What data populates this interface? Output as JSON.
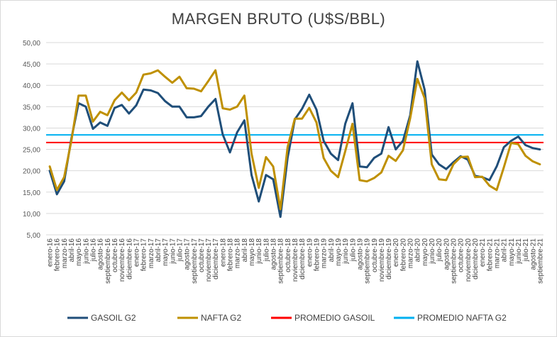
{
  "chart_data": {
    "type": "line",
    "title": "MARGEN BRUTO (U$S/BBL)",
    "xlabel": "",
    "ylabel": "",
    "ylim": [
      5,
      50
    ],
    "yticks": [
      "5,00",
      "10,00",
      "15,00",
      "20,00",
      "25,00",
      "30,00",
      "35,00",
      "40,00",
      "45,00",
      "50,00"
    ],
    "grid": "horizontal",
    "legend_position": "bottom",
    "categories": [
      "enero-16",
      "febrero-16",
      "marzo-16",
      "abril-16",
      "mayo-16",
      "junio-16",
      "julio-16",
      "agosto-16",
      "septiembre-16",
      "octubre-16",
      "noviembre-16",
      "diciembre-16",
      "enero-17",
      "febrero-17",
      "marzo-17",
      "abril-17",
      "mayo-17",
      "junio-17",
      "julio-17",
      "agosto-17",
      "septiembre-17",
      "octubre-17",
      "noviembre-17",
      "diciembre-17",
      "enero-18",
      "febrero-18",
      "marzo-18",
      "abril-18",
      "mayo-18",
      "junio-18",
      "julio-18",
      "agosto-18",
      "septiembre-18",
      "octubre-18",
      "noviembre-18",
      "diciembre-18",
      "enero-19",
      "febrero-19",
      "marzo-19",
      "abril-19",
      "mayo-19",
      "junio-19",
      "julio-19",
      "agosto-19",
      "septiembre-19",
      "octubre-19",
      "noviembre-19",
      "diciembre-19",
      "enero-20",
      "febrero-20",
      "marzo-20",
      "abril-20",
      "mayo-20",
      "junio-20",
      "julio-20",
      "agosto-20",
      "septiembre-20",
      "octubre-20",
      "noviembre-20",
      "diciembre-20",
      "enero-21",
      "febrero-21",
      "marzo-21",
      "abril-21",
      "mayo-21",
      "junio-21",
      "julio-21",
      "agosto-21",
      "septiembre-21"
    ],
    "series": [
      {
        "name": "GASOIL G2",
        "color": "#1f4e79",
        "values": [
          20.0,
          14.5,
          17.5,
          27.5,
          35.8,
          35.0,
          29.8,
          31.3,
          30.5,
          34.7,
          35.4,
          33.4,
          35.3,
          39.0,
          38.8,
          38.2,
          36.3,
          35.0,
          35.0,
          32.5,
          32.5,
          32.8,
          35.0,
          36.8,
          28.5,
          24.3,
          29.0,
          31.8,
          19.0,
          12.8,
          19.0,
          18.0,
          9.2,
          23.0,
          32.0,
          34.5,
          37.8,
          34.3,
          27.0,
          24.0,
          22.5,
          31.0,
          35.8,
          21.0,
          20.8,
          23.0,
          24.0,
          30.2,
          25.0,
          27.0,
          33.0,
          45.6,
          39.0,
          23.8,
          21.5,
          20.4,
          22.0,
          23.4,
          22.6,
          18.8,
          18.5,
          17.8,
          21.0,
          25.5,
          27.0,
          28.0,
          26.0,
          25.3,
          25.0
        ]
      },
      {
        "name": "NAFTA G2",
        "color": "#bf9000",
        "values": [
          21.0,
          15.5,
          18.5,
          27.0,
          37.6,
          37.6,
          31.5,
          33.8,
          33.0,
          36.5,
          38.3,
          36.5,
          38.3,
          42.5,
          42.8,
          43.5,
          42.0,
          40.6,
          42.0,
          39.3,
          39.2,
          38.6,
          41.0,
          43.5,
          34.6,
          34.3,
          35.0,
          37.6,
          24.0,
          16.0,
          23.2,
          21.0,
          11.0,
          25.5,
          32.2,
          32.2,
          34.7,
          31.3,
          23.0,
          20.0,
          18.5,
          24.6,
          31.0,
          17.8,
          17.5,
          18.3,
          19.6,
          23.5,
          22.3,
          24.8,
          32.3,
          41.5,
          37.0,
          21.5,
          18.0,
          17.8,
          21.5,
          23.2,
          23.3,
          18.5,
          18.6,
          16.5,
          15.5,
          20.8,
          26.5,
          26.2,
          23.5,
          22.2,
          21.5
        ]
      },
      {
        "name": "PROMEDIO GASOIL",
        "color": "#ff0000",
        "constant": 26.6
      },
      {
        "name": "PROMEDIO NAFTA G2",
        "color": "#00b0f0",
        "constant": 28.4
      }
    ]
  }
}
